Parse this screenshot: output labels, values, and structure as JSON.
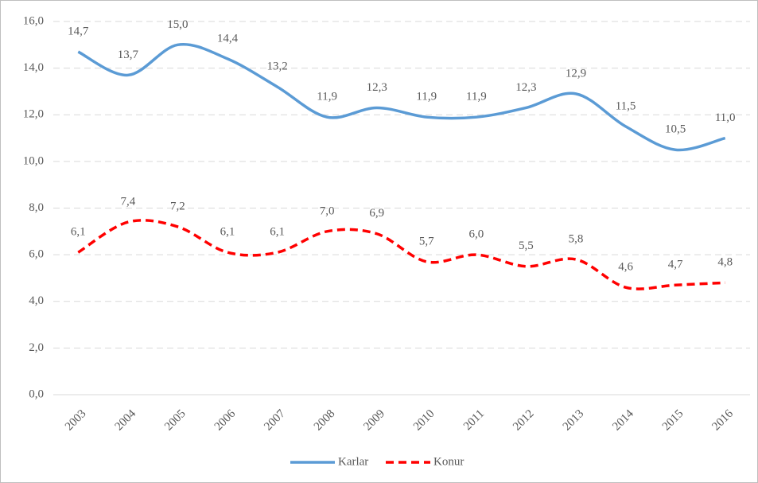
{
  "chart_data": {
    "type": "line",
    "categories": [
      "2003",
      "2004",
      "2005",
      "2006",
      "2007",
      "2008",
      "2009",
      "2010",
      "2011",
      "2012",
      "2013",
      "2014",
      "2015",
      "2016"
    ],
    "series": [
      {
        "name": "Karlar",
        "color": "#5b9bd5",
        "dashed": false,
        "values": [
          14.7,
          13.7,
          15.0,
          14.4,
          13.2,
          11.9,
          12.3,
          11.9,
          11.9,
          12.3,
          12.9,
          11.5,
          10.5,
          11.0
        ],
        "value_labels": [
          "14,7",
          "13,7",
          "15,0",
          "14,4",
          "13,2",
          "11,9",
          "12,3",
          "11,9",
          "11,9",
          "12,3",
          "12,9",
          "11,5",
          "10,5",
          "11,0"
        ]
      },
      {
        "name": "Konur",
        "color": "#ff0000",
        "dashed": true,
        "values": [
          6.1,
          7.4,
          7.2,
          6.1,
          6.1,
          7.0,
          6.9,
          5.7,
          6.0,
          5.5,
          5.8,
          4.6,
          4.7,
          4.8
        ],
        "value_labels": [
          "6,1",
          "7,4",
          "7,2",
          "6,1",
          "6,1",
          "7,0",
          "6,9",
          "5,7",
          "6,0",
          "5,5",
          "5,8",
          "4,6",
          "4,7",
          "4,8"
        ]
      }
    ],
    "ylim": [
      0,
      16
    ],
    "yticks": [
      {
        "value": 0,
        "label": "0,0"
      },
      {
        "value": 2,
        "label": "2,0"
      },
      {
        "value": 4,
        "label": "4,0"
      },
      {
        "value": 6,
        "label": "6,0"
      },
      {
        "value": 8,
        "label": "8,0"
      },
      {
        "value": 10,
        "label": "10,0"
      },
      {
        "value": 12,
        "label": "12,0"
      },
      {
        "value": 14,
        "label": "14,0"
      },
      {
        "value": 16,
        "label": "16,0"
      }
    ],
    "grid": true,
    "legend": "bottom",
    "smooth": true
  }
}
